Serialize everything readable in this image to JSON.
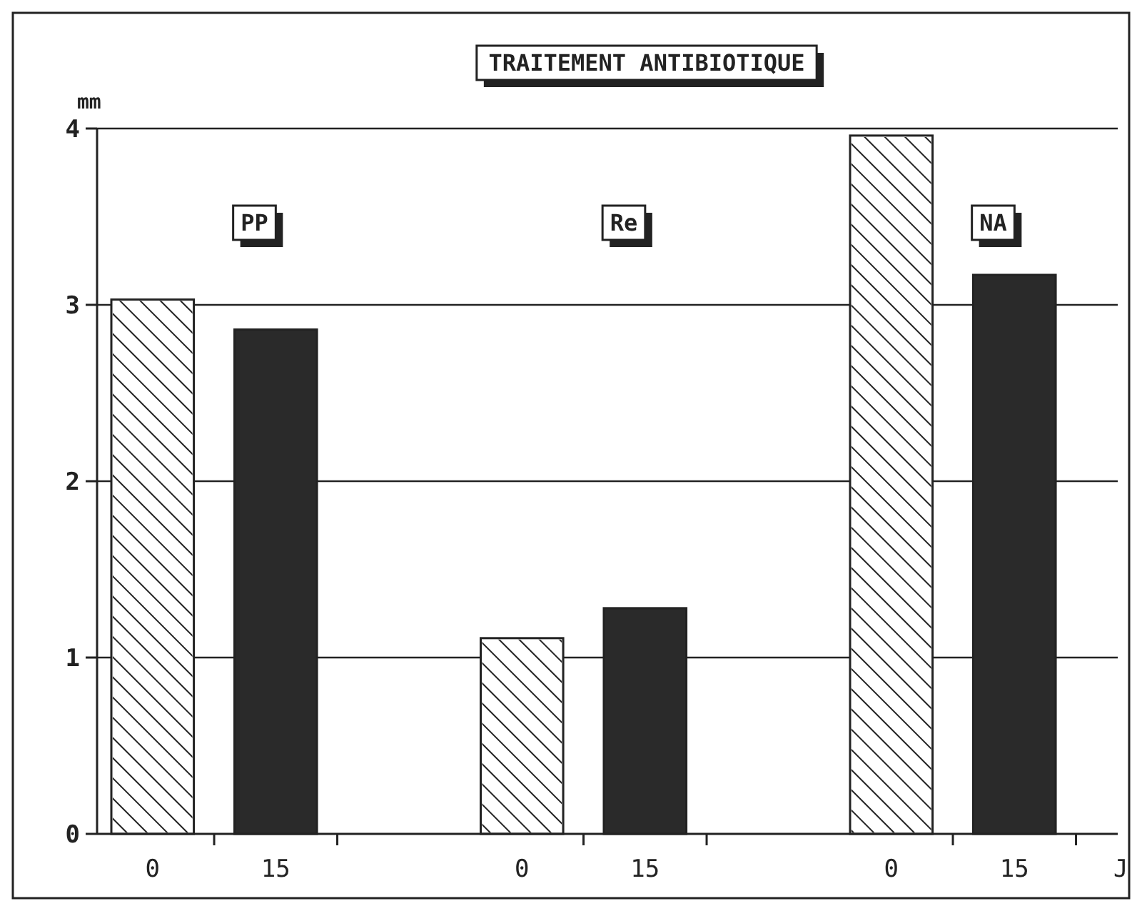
{
  "chart_data": {
    "type": "bar",
    "title": "TRAITEMENT ANTIBIOTIQUE",
    "ylabel": "mm",
    "xlabel": "J",
    "categories": [
      "0",
      "15",
      "0",
      "15",
      "0",
      "15"
    ],
    "values": [
      3.03,
      2.86,
      1.11,
      1.28,
      3.96,
      3.17
    ],
    "colors": [
      "#ffffff",
      "#2a2a2a",
      "#ffffff",
      "#2a2a2a",
      "#ffffff",
      "#2a2a2a"
    ],
    "ylim": [
      0,
      4
    ],
    "yticks": [
      0,
      1,
      2,
      3,
      4
    ],
    "grid": "y",
    "annotations": [
      "PP",
      "Re",
      "NA"
    ]
  }
}
